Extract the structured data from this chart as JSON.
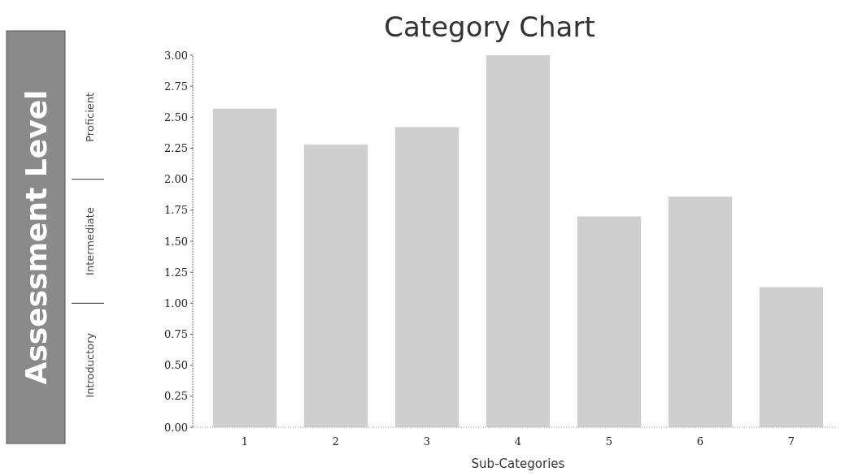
{
  "chart_data": {
    "type": "bar",
    "title": "Category Chart",
    "xlabel": "Sub-Categories",
    "ylabel": "Assessment Level",
    "categories": [
      "1",
      "2",
      "3",
      "4",
      "5",
      "6",
      "7"
    ],
    "values": [
      2.57,
      2.28,
      2.42,
      3.0,
      1.7,
      1.86,
      1.13
    ],
    "color": "#cfcfcf",
    "ylim": [
      0,
      3
    ],
    "yticks": [
      {
        "value": 0,
        "label": "0.00"
      },
      {
        "value": 0.25,
        "label": "0.25"
      },
      {
        "value": 0.5,
        "label": "0.50"
      },
      {
        "value": 0.75,
        "label": "0.75"
      },
      {
        "value": 1,
        "label": "1.00"
      },
      {
        "value": 1.25,
        "label": "1.25"
      },
      {
        "value": 1.5,
        "label": "1.50"
      },
      {
        "value": 1.75,
        "label": "1.75"
      },
      {
        "value": 2,
        "label": "2.00"
      },
      {
        "value": 2.25,
        "label": "2.25"
      },
      {
        "value": 2.5,
        "label": "2.50"
      },
      {
        "value": 2.75,
        "label": "2.75"
      },
      {
        "value": 3,
        "label": "3.00"
      }
    ],
    "annotations": [
      "Introductory",
      "Intermediate",
      "Proficient"
    ],
    "grid": false
  }
}
